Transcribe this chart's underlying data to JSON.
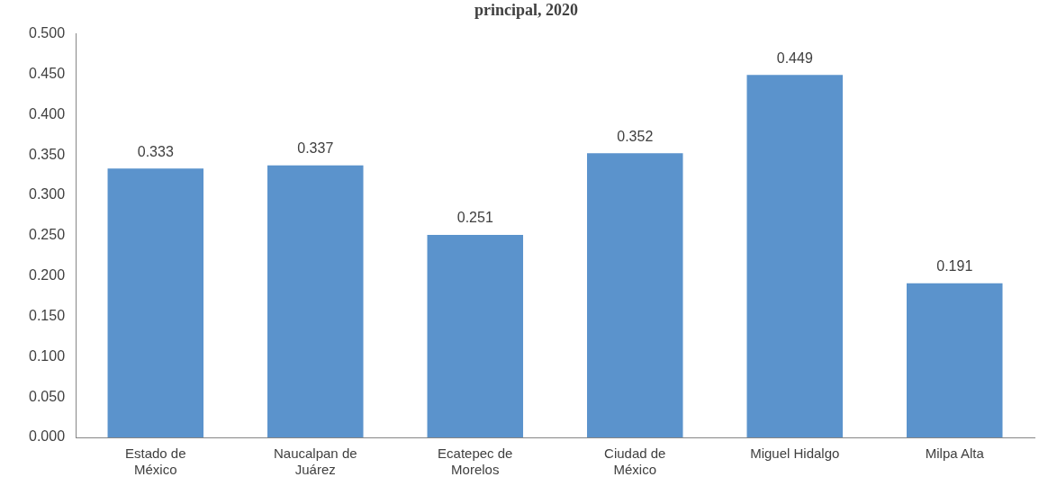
{
  "chart_data": {
    "type": "bar",
    "title": "principal, 2020",
    "categories": [
      "Estado de México",
      "Naucalpan de Juárez",
      "Ecatepec de Morelos",
      "Ciudad de México",
      "Miguel Hidalgo",
      "Milpa Alta"
    ],
    "values": [
      0.333,
      0.337,
      0.251,
      0.352,
      0.449,
      0.191
    ],
    "color": "#5b93cc",
    "ylim": [
      0,
      0.5
    ],
    "yticks": [
      {
        "value": 0,
        "label": "0.000"
      },
      {
        "value": 0.05,
        "label": "0.050"
      },
      {
        "value": 0.1,
        "label": "0.100"
      },
      {
        "value": 0.15,
        "label": "0.150"
      },
      {
        "value": 0.2,
        "label": "0.200"
      },
      {
        "value": 0.25,
        "label": "0.250"
      },
      {
        "value": 0.3,
        "label": "0.300"
      },
      {
        "value": 0.35,
        "label": "0.350"
      },
      {
        "value": 0.4,
        "label": "0.400"
      },
      {
        "value": 0.45,
        "label": "0.450"
      },
      {
        "value": 0.5,
        "label": "0.500"
      }
    ],
    "grid": false,
    "legend": false,
    "data_labels": true
  }
}
